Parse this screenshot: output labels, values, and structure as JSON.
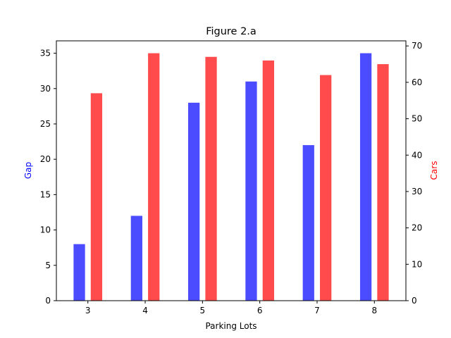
{
  "chart_data": {
    "type": "bar",
    "title": "Figure 2.a",
    "xlabel": "Parking Lots",
    "x": [
      3,
      4,
      5,
      6,
      7,
      8
    ],
    "x_ticks": [
      "3",
      "4",
      "5",
      "6",
      "7",
      "8"
    ],
    "xlim": [
      2.45,
      8.55
    ],
    "y_left": {
      "label": "Gap",
      "label_color": "#0000ff",
      "ylim": [
        0,
        36.75
      ],
      "ticks": [
        0,
        5,
        10,
        15,
        20,
        25,
        30,
        35
      ]
    },
    "y_right": {
      "label": "Cars",
      "label_color": "#ff0000",
      "ylim": [
        0,
        71.4
      ],
      "ticks": [
        0,
        10,
        20,
        30,
        40,
        50,
        60,
        70
      ]
    },
    "series": [
      {
        "name": "Gap",
        "axis": "left",
        "color": "#4b4bff",
        "values": [
          8,
          12,
          28,
          31,
          22,
          35
        ]
      },
      {
        "name": "Cars",
        "axis": "right",
        "color": "#ff4b4b",
        "values": [
          57,
          68,
          67,
          66,
          62,
          65
        ]
      }
    ],
    "grid": false,
    "legend": "none"
  }
}
